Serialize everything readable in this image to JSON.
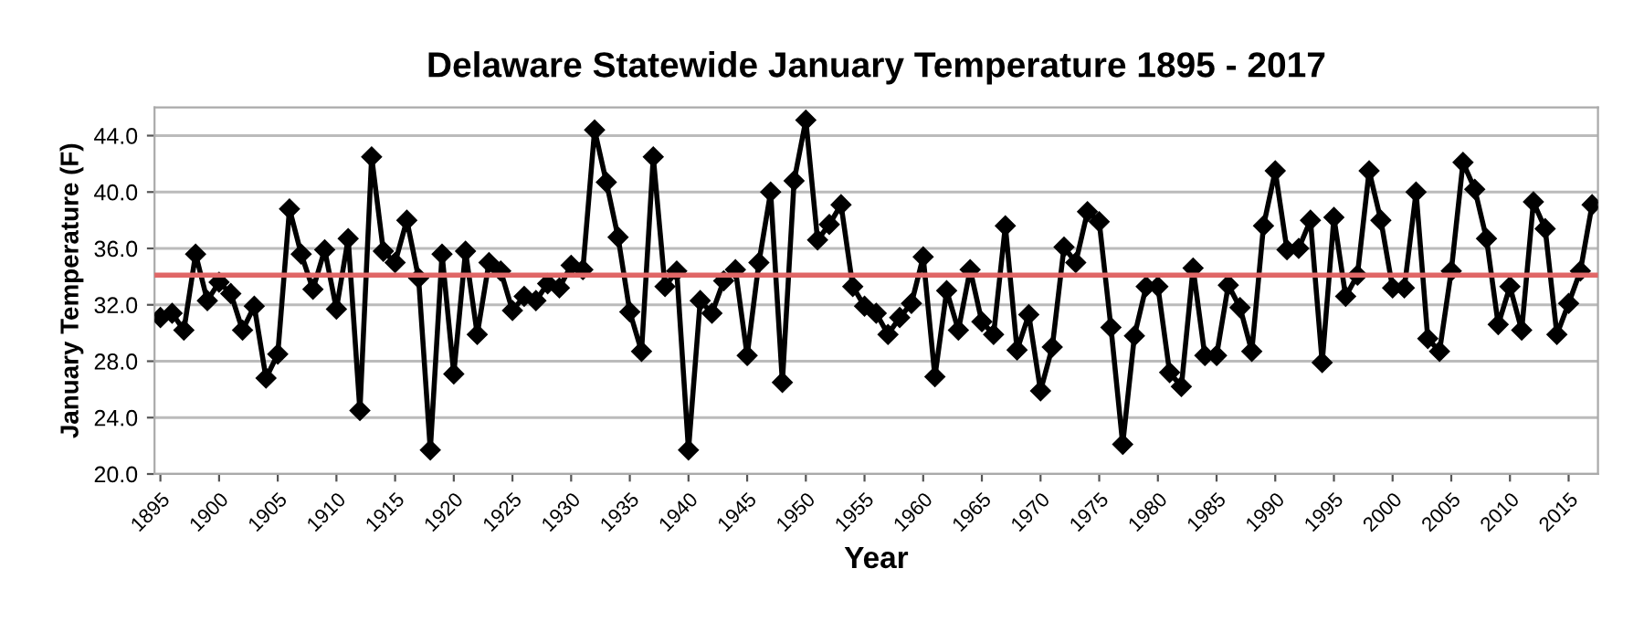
{
  "chart_data": {
    "type": "line",
    "title": "Delaware Statewide January Temperature 1895 - 2017",
    "xlabel": "Year",
    "ylabel": "January Temperature (F)",
    "x": [
      1895,
      1896,
      1897,
      1898,
      1899,
      1900,
      1901,
      1902,
      1903,
      1904,
      1905,
      1906,
      1907,
      1908,
      1909,
      1910,
      1911,
      1912,
      1913,
      1914,
      1915,
      1916,
      1917,
      1918,
      1919,
      1920,
      1921,
      1922,
      1923,
      1924,
      1925,
      1926,
      1927,
      1928,
      1929,
      1930,
      1931,
      1932,
      1933,
      1934,
      1935,
      1936,
      1937,
      1938,
      1939,
      1940,
      1941,
      1942,
      1943,
      1944,
      1945,
      1946,
      1947,
      1948,
      1949,
      1950,
      1951,
      1952,
      1953,
      1954,
      1955,
      1956,
      1957,
      1958,
      1959,
      1960,
      1961,
      1962,
      1963,
      1964,
      1965,
      1966,
      1967,
      1968,
      1969,
      1970,
      1971,
      1972,
      1973,
      1974,
      1975,
      1976,
      1977,
      1978,
      1979,
      1980,
      1981,
      1982,
      1983,
      1984,
      1985,
      1986,
      1987,
      1988,
      1989,
      1990,
      1991,
      1992,
      1993,
      1994,
      1995,
      1996,
      1997,
      1998,
      1999,
      2000,
      2001,
      2002,
      2003,
      2004,
      2005,
      2006,
      2007,
      2008,
      2009,
      2010,
      2011,
      2012,
      2013,
      2014,
      2015,
      2016,
      2017
    ],
    "series": [
      {
        "color": "#000000",
        "values": [
          31.1,
          31.4,
          30.2,
          35.6,
          32.3,
          33.6,
          32.8,
          30.2,
          31.9,
          26.8,
          28.5,
          38.8,
          35.6,
          33.1,
          35.9,
          31.7,
          36.7,
          24.5,
          42.5,
          35.8,
          35.0,
          38.0,
          33.9,
          21.7,
          35.6,
          27.1,
          35.8,
          29.9,
          35.0,
          34.4,
          31.6,
          32.6,
          32.3,
          33.5,
          33.2,
          34.8,
          34.5,
          44.4,
          40.7,
          36.8,
          31.5,
          28.7,
          42.5,
          33.3,
          34.4,
          21.7,
          32.3,
          31.4,
          33.7,
          34.5,
          28.4,
          35.0,
          40.0,
          26.5,
          40.8,
          45.1,
          36.6,
          37.7,
          39.1,
          33.3,
          31.9,
          31.4,
          29.9,
          31.1,
          32.1,
          35.4,
          26.9,
          33.0,
          30.2,
          34.5,
          30.8,
          29.9,
          37.6,
          28.8,
          31.3,
          25.9,
          29.0,
          36.1,
          35.0,
          38.6,
          37.9,
          30.4,
          22.1,
          29.8,
          33.3,
          33.3,
          27.2,
          26.2,
          34.6,
          28.4,
          28.4,
          33.4,
          31.8,
          28.7,
          37.6,
          41.5,
          35.9,
          36.0,
          38.0,
          27.9,
          38.2,
          32.6,
          34.1,
          41.5,
          38.0,
          33.2,
          33.2,
          40.0,
          29.6,
          28.7,
          34.4,
          42.1,
          40.2,
          36.7,
          30.6,
          33.3,
          30.2,
          39.3,
          37.4,
          29.9,
          32.1,
          34.4,
          39.1
        ]
      }
    ],
    "ref_lines": [
      {
        "axis": "y",
        "value": 34.1,
        "color": "#e06666"
      }
    ],
    "xlim": [
      1894.5,
      2017.5
    ],
    "xticks": [
      1895,
      1900,
      1905,
      1910,
      1915,
      1920,
      1925,
      1930,
      1935,
      1940,
      1945,
      1950,
      1955,
      1960,
      1965,
      1970,
      1975,
      1980,
      1985,
      1990,
      1995,
      2000,
      2005,
      2010,
      2015
    ],
    "ylim": [
      20,
      46
    ],
    "yticks": [
      {
        "value": 20,
        "label": "20.0"
      },
      {
        "value": 24,
        "label": "24.0"
      },
      {
        "value": 28,
        "label": "28.0"
      },
      {
        "value": 32,
        "label": "32.0"
      },
      {
        "value": 36,
        "label": "36.0"
      },
      {
        "value": 40,
        "label": "40.0"
      },
      {
        "value": 44,
        "label": "44.0"
      }
    ],
    "grid": "y",
    "marker": "diamond",
    "line_style": "solid",
    "legend": false
  }
}
